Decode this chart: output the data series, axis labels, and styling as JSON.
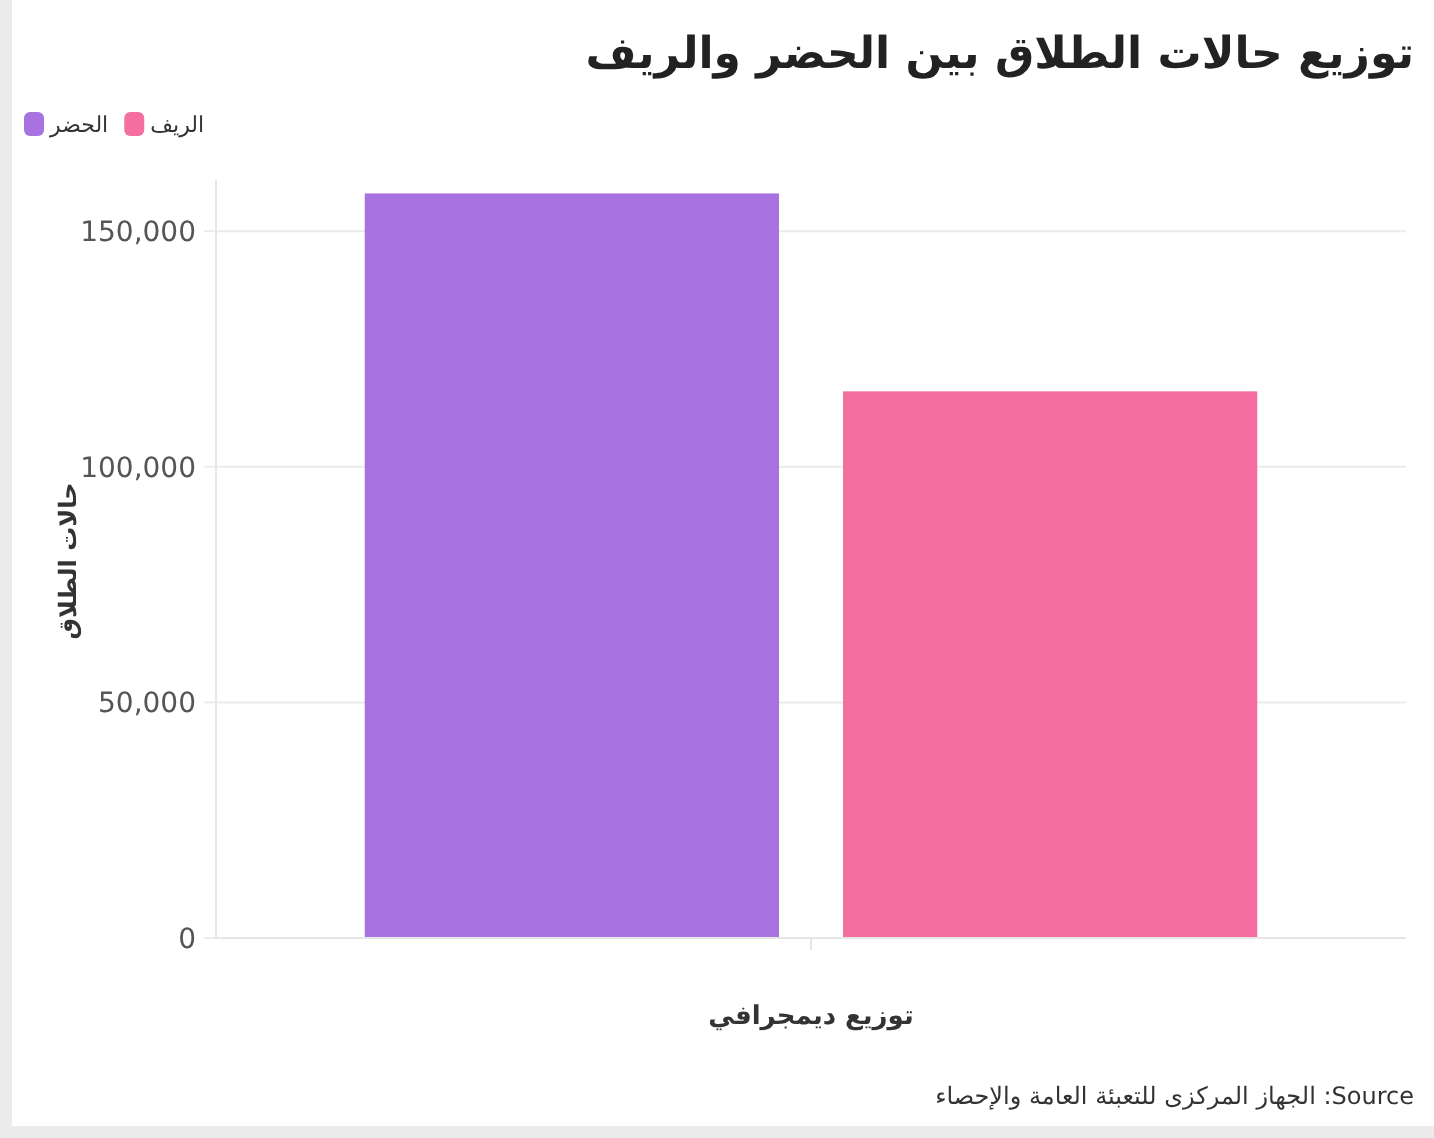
{
  "chart_data": {
    "type": "bar",
    "title": "توزيع حالات الطلاق بين الحضر والريف",
    "xlabel": "توزيع ديمجرافي",
    "ylabel": "حالات الطلاق",
    "annotations": [
      "Source: الجهاز المركزى للتعبئة العامة والإحصاء"
    ],
    "categories": [
      null
    ],
    "series": [
      {
        "name": "الحضر",
        "color": "#a872e0",
        "values": [
          158000
        ]
      },
      {
        "name": "الريف",
        "color": "#f46f9f",
        "values": [
          116000
        ]
      }
    ],
    "ylim": [
      0,
      160000
    ],
    "yticks": [
      {
        "value": 0,
        "label": "0"
      },
      {
        "value": 50000,
        "label": "50,000"
      },
      {
        "value": 100000,
        "label": "100,000"
      },
      {
        "value": 150000,
        "label": "150,000"
      }
    ],
    "grid": "y",
    "legend": "top left"
  }
}
